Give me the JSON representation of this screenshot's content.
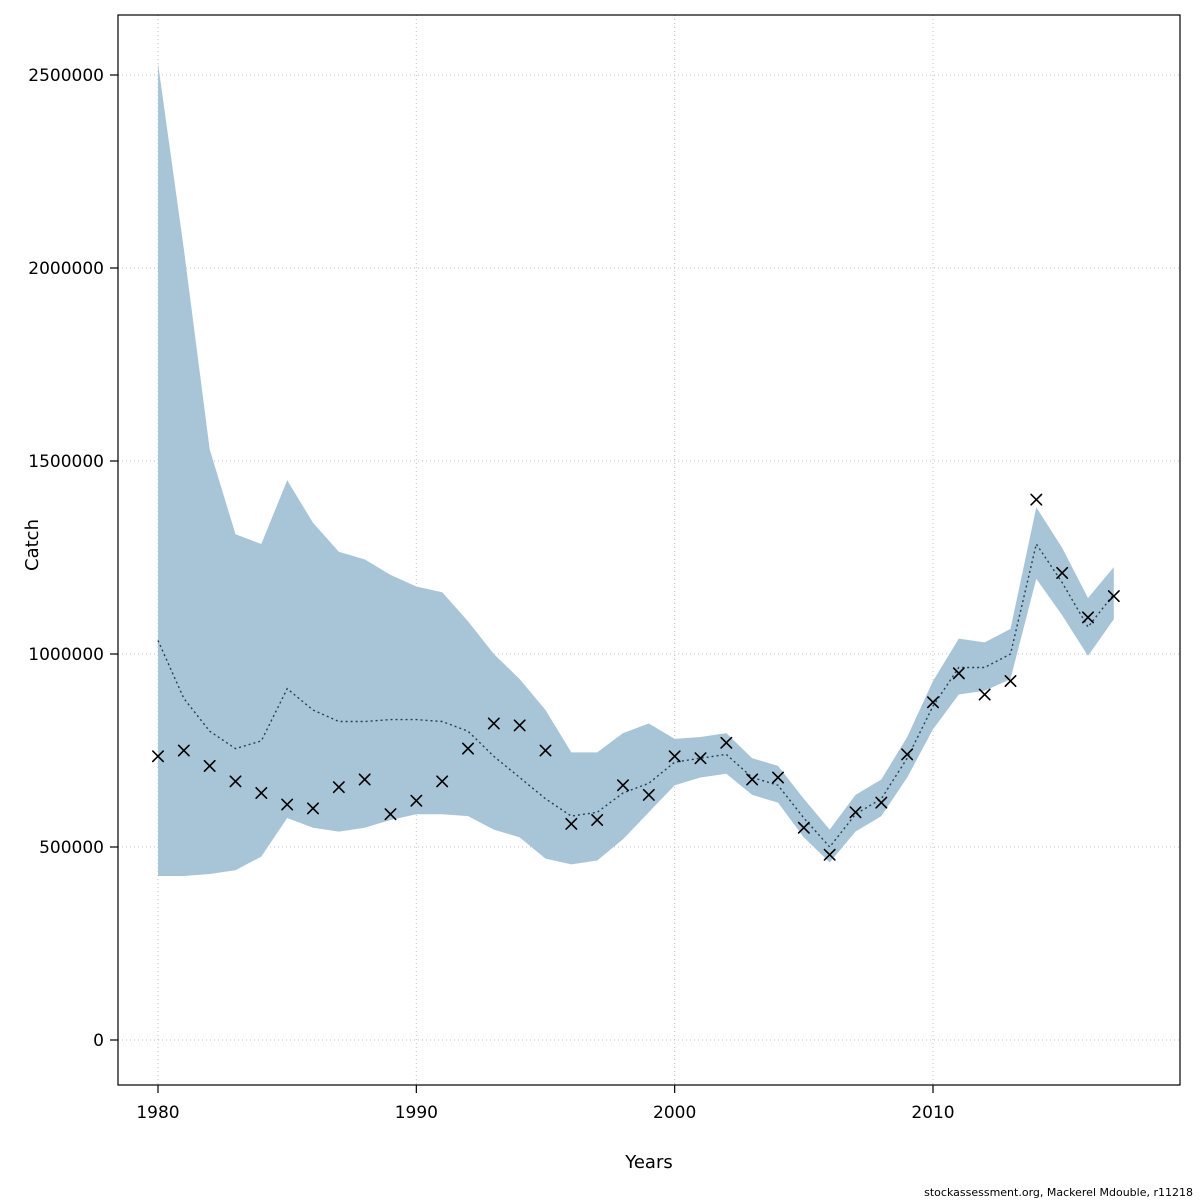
{
  "footer": "stockassessment.org, Mackerel Mdouble, r11218",
  "chart_data": {
    "type": "line",
    "title": "",
    "xlabel": "Years",
    "ylabel": "Catch",
    "legend_position": "none",
    "grid": true,
    "xlim": [
      1978.5,
      2019.5
    ],
    "ylim": [
      0,
      2500000
    ],
    "x_ticks": [
      1980,
      1990,
      2000,
      2010
    ],
    "x_tick_labels": [
      "1980",
      "1990",
      "2000",
      "2010"
    ],
    "y_ticks": [
      0,
      500000,
      1000000,
      1500000,
      2000000,
      2500000
    ],
    "y_tick_labels": [
      "0",
      "500000",
      "1000000",
      "1500000",
      "2000000",
      "2500000"
    ],
    "x": [
      1980,
      1981,
      1982,
      1983,
      1984,
      1985,
      1986,
      1987,
      1988,
      1989,
      1990,
      1991,
      1992,
      1993,
      1994,
      1995,
      1996,
      1997,
      1998,
      1999,
      2000,
      2001,
      2002,
      2003,
      2004,
      2005,
      2006,
      2007,
      2008,
      2009,
      2010,
      2011,
      2012,
      2013,
      2014,
      2015,
      2016,
      2017
    ],
    "series": [
      {
        "name": "estimated-catch",
        "style": "dotted-line",
        "values": [
          1035000,
          885000,
          800000,
          755000,
          775000,
          910000,
          855000,
          825000,
          825000,
          830000,
          830000,
          825000,
          800000,
          735000,
          680000,
          625000,
          580000,
          590000,
          640000,
          665000,
          720000,
          730000,
          740000,
          680000,
          660000,
          575000,
          500000,
          585000,
          625000,
          730000,
          865000,
          965000,
          965000,
          1000000,
          1285000,
          1185000,
          1070000,
          1155000
        ]
      },
      {
        "name": "observed-catch",
        "style": "x-markers",
        "values": [
          735000,
          750000,
          710000,
          670000,
          640000,
          610000,
          600000,
          655000,
          675000,
          585000,
          620000,
          670000,
          755000,
          820000,
          815000,
          750000,
          560000,
          570000,
          660000,
          635000,
          735000,
          730000,
          770000,
          675000,
          680000,
          550000,
          480000,
          590000,
          615000,
          740000,
          875000,
          950000,
          895000,
          930000,
          1400000,
          1210000,
          1095000,
          1150000
        ]
      },
      {
        "name": "confidence-upper",
        "style": "band-upper",
        "values": [
          2530000,
          2050000,
          1530000,
          1310000,
          1285000,
          1450000,
          1340000,
          1265000,
          1245000,
          1205000,
          1175000,
          1160000,
          1085000,
          1000000,
          935000,
          855000,
          745000,
          745000,
          795000,
          820000,
          780000,
          785000,
          795000,
          730000,
          710000,
          625000,
          545000,
          635000,
          675000,
          785000,
          930000,
          1040000,
          1030000,
          1065000,
          1380000,
          1275000,
          1145000,
          1225000
        ]
      },
      {
        "name": "confidence-lower",
        "style": "band-lower",
        "values": [
          425000,
          425000,
          430000,
          440000,
          475000,
          575000,
          550000,
          540000,
          550000,
          570000,
          585000,
          585000,
          580000,
          545000,
          525000,
          470000,
          455000,
          465000,
          520000,
          590000,
          660000,
          680000,
          690000,
          635000,
          615000,
          525000,
          460000,
          540000,
          580000,
          680000,
          805000,
          895000,
          905000,
          935000,
          1195000,
          1100000,
          995000,
          1090000
        ]
      }
    ],
    "colors": {
      "band": "#a8c5d8",
      "line": "#1e4258",
      "grid": "#bfbfbf",
      "axis": "#000000",
      "marker": "#000000",
      "background": "#ffffff"
    }
  }
}
